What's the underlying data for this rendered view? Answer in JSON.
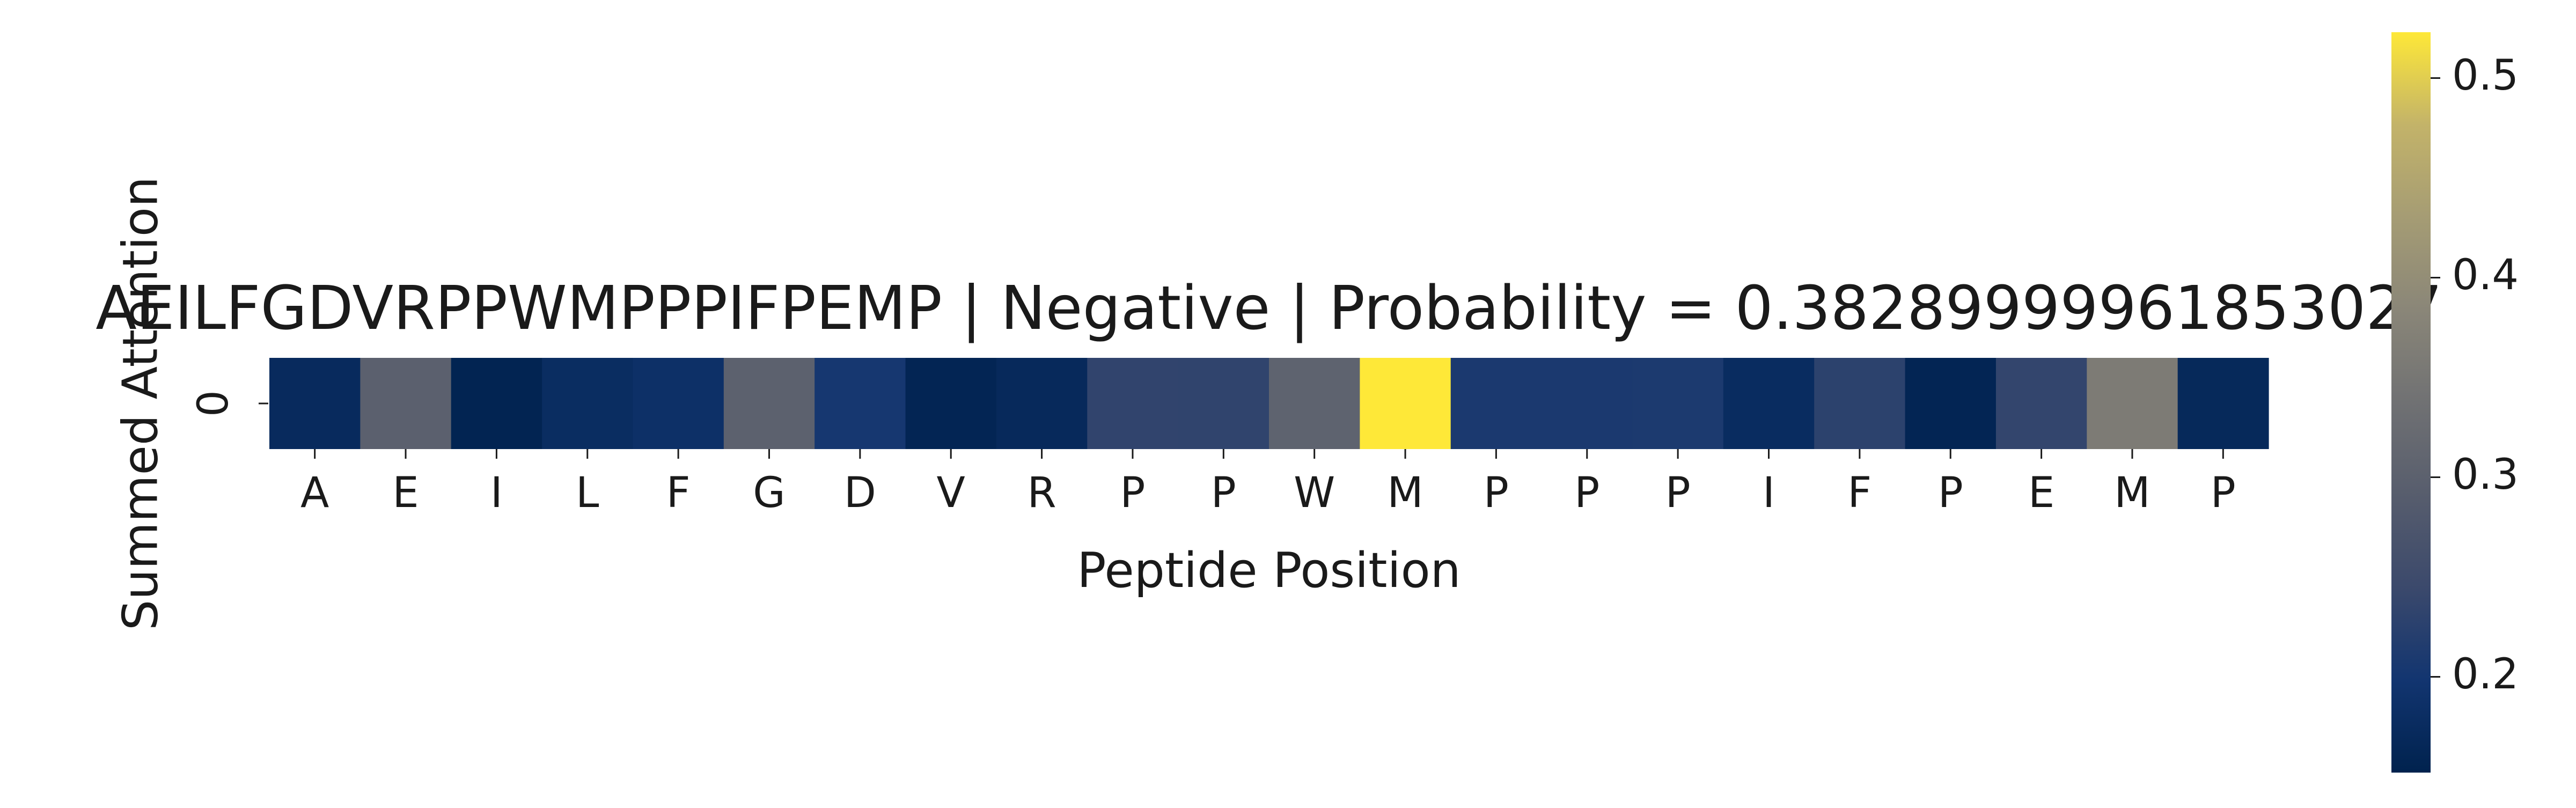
{
  "chart_data": {
    "type": "heatmap",
    "title": "AEILFGDVRPPWMPPPIFPEMP | Negative | Probability = 0.38289999961853027",
    "xlabel": "Peptide Position",
    "ylabel": "Summed Attention",
    "x_categories": [
      "A",
      "E",
      "I",
      "L",
      "F",
      "G",
      "D",
      "V",
      "R",
      "P",
      "P",
      "W",
      "M",
      "P",
      "P",
      "P",
      "I",
      "F",
      "P",
      "E",
      "M",
      "P"
    ],
    "y_categories": [
      "0"
    ],
    "values": [
      [
        0.172,
        0.298,
        0.158,
        0.178,
        0.186,
        0.3,
        0.203,
        0.16,
        0.17,
        0.234,
        0.232,
        0.304,
        0.523,
        0.208,
        0.208,
        0.21,
        0.176,
        0.228,
        0.16,
        0.236,
        0.36,
        0.168
      ]
    ],
    "colormap": "cividis",
    "colorbar": {
      "vmin": 0.152,
      "vmax": 0.523,
      "ticks": [
        0.2,
        0.3,
        0.4,
        0.5
      ],
      "tick_labels": [
        "0.2",
        "0.3",
        "0.4",
        "0.5"
      ]
    },
    "grid": false
  }
}
